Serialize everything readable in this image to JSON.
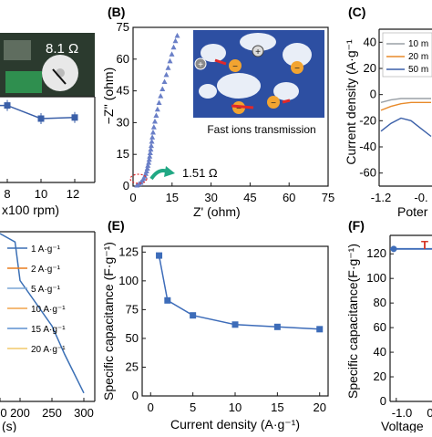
{
  "panels": {
    "a": {
      "photo_reading": "8.1 Ω",
      "x_ticks": [
        "8",
        "10",
        "12"
      ],
      "x_label": "x100 rpm)"
    },
    "b": {
      "label": "(B)",
      "inset_caption": "Fast ions transmission",
      "annotation": "1.51 Ω",
      "x_label": "Z' (ohm)",
      "y_label": "−Z'' (ohm)"
    },
    "c": {
      "label": "(C)",
      "y_label": "Current density (A·g⁻¹",
      "x_label": "Poter",
      "legend": [
        "10 m",
        "20 m",
        "50 m"
      ],
      "x_ticks": [
        "-1.2",
        "-0."
      ]
    },
    "d": {
      "legend": [
        "1 A·g⁻¹",
        "2 A·g⁻¹",
        "5 A·g⁻¹",
        "10 A·g⁻¹",
        "15 A·g⁻¹",
        "20 A·g⁻¹"
      ],
      "x_ticks": [
        "0",
        "200",
        "250",
        "300"
      ],
      "x_label": "(s)"
    },
    "e": {
      "label": "(E)",
      "x_label": "Current density (A·g⁻¹)",
      "y_label": "Specific capacitance (F·g⁻¹)"
    },
    "f": {
      "label": "(F)",
      "y_label": "Specific capacitance(F·g⁻¹)",
      "x_label": "Voltage",
      "x_ticks": [
        "-1.0",
        "0"
      ],
      "y_ticks": [
        "0",
        "20",
        "40",
        "60",
        "80",
        "100",
        "120"
      ],
      "red_text": "T"
    }
  },
  "chart_data": [
    {
      "type": "scatter",
      "panel": "a",
      "x": [
        8,
        10,
        12
      ],
      "y": [
        0.92,
        0.8,
        0.81
      ],
      "xlabel": "x100 rpm)",
      "color": "#3a5fa8"
    },
    {
      "type": "scatter",
      "panel": "b",
      "title": "",
      "xlabel": "Z' (ohm)",
      "ylabel": "−Z'' (ohm)",
      "xlim": [
        0,
        75
      ],
      "ylim": [
        0,
        75
      ],
      "x_ticks": [
        0,
        15,
        30,
        45,
        60,
        75
      ],
      "y_ticks": [
        0,
        15,
        30,
        45,
        60,
        75
      ],
      "x": [
        1.5,
        2.3,
        3.0,
        3.6,
        4.1,
        4.5,
        4.9,
        5.2,
        5.5,
        5.7,
        6.0,
        6.2,
        6.4,
        6.6,
        6.8,
        7.0,
        7.2,
        7.4,
        7.7,
        8.0,
        8.4,
        8.9,
        9.4,
        10.0,
        10.6,
        11.3,
        12.1,
        12.8,
        13.5,
        14.2,
        14.9,
        15.6,
        16.3,
        17.0
      ],
      "y": [
        0.3,
        0.9,
        1.6,
        2.5,
        3.5,
        4.6,
        5.8,
        7.0,
        8.3,
        9.6,
        11.0,
        12.5,
        14.0,
        15.6,
        17.3,
        19.0,
        21.0,
        23.0,
        25.3,
        27.8,
        30.5,
        33.3,
        36.2,
        39.3,
        42.5,
        45.8,
        49.2,
        52.5,
        55.8,
        59.0,
        62.2,
        65.5,
        68.5,
        71.0
      ],
      "annotation": "1.51 Ω",
      "color": "#6a7fc7"
    },
    {
      "type": "line",
      "panel": "c",
      "xlabel": "Poter",
      "ylabel": "Current density (A·g⁻¹",
      "ylim": [
        -70,
        50
      ],
      "y_ticks": [
        -60,
        -50,
        -40,
        -30,
        -20,
        -10,
        0,
        10,
        20,
        30,
        40
      ],
      "series": [
        {
          "name": "10 m",
          "color": "#9aa0a6",
          "x": [
            -1.2,
            -1.1,
            -1.0,
            -0.9,
            -0.8,
            -0.7
          ],
          "y": [
            -6,
            -4,
            -3,
            -3,
            -3,
            -3
          ]
        },
        {
          "name": "20 m",
          "color": "#e88a2a",
          "x": [
            -1.2,
            -1.1,
            -1.0,
            -0.9,
            -0.8,
            -0.7
          ],
          "y": [
            -12,
            -9,
            -7,
            -6,
            -6,
            -6
          ]
        },
        {
          "name": "50 m",
          "color": "#3a5fa8",
          "x": [
            -1.2,
            -1.1,
            -1.0,
            -0.9,
            -0.8,
            -0.7
          ],
          "y": [
            -28,
            -22,
            -18,
            -20,
            -26,
            -32
          ]
        }
      ]
    },
    {
      "type": "line",
      "panel": "d",
      "xlabel": "(s)",
      "series": [
        {
          "name": "1 A·g⁻¹",
          "color": "#3a6fb5",
          "x": [
            0,
            150,
            200,
            250,
            270,
            300
          ],
          "y": [
            1.0,
            0.95,
            0.72,
            0.45,
            0.28,
            0.05
          ]
        },
        {
          "name": "2 A·g⁻¹",
          "color": "#e87d1e"
        },
        {
          "name": "5 A·g⁻¹",
          "color": "#7aa6d6"
        },
        {
          "name": "10 A·g⁻¹",
          "color": "#f0a44a"
        },
        {
          "name": "15 A·g⁻¹",
          "color": "#5b8fd0"
        },
        {
          "name": "20 A·g⁻¹",
          "color": "#f2c96a"
        }
      ]
    },
    {
      "type": "line",
      "panel": "e",
      "title": "",
      "xlabel": "Current density (A·g⁻¹)",
      "ylabel": "Specific capacitance (F·g⁻¹)",
      "xlim": [
        -1,
        21
      ],
      "ylim": [
        0,
        130
      ],
      "x_ticks": [
        0,
        5,
        10,
        15,
        20
      ],
      "y_ticks": [
        0,
        25,
        50,
        75,
        100,
        125
      ],
      "x": [
        1,
        2,
        5,
        10,
        15,
        20
      ],
      "y": [
        122,
        83,
        70,
        62,
        60,
        58
      ],
      "color": "#3d6cb9"
    },
    {
      "type": "line",
      "panel": "f",
      "ylabel": "Specific capacitance(F·g⁻¹)",
      "xlabel": "Voltage",
      "ylim": [
        0,
        135
      ],
      "y_ticks": [
        0,
        20,
        40,
        60,
        80,
        100,
        120
      ],
      "x": [
        -1.2,
        -0.5,
        0.2
      ],
      "y": [
        124,
        124,
        124
      ],
      "color": "#3d6cb9"
    }
  ]
}
